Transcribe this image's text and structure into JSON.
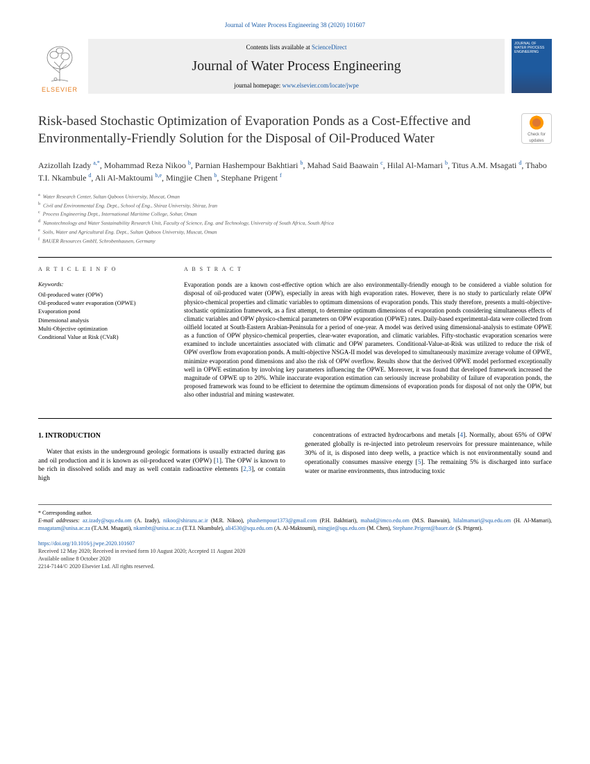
{
  "citation": "Journal of Water Process Engineering 38 (2020) 101607",
  "header": {
    "elsevier": "ELSEVIER",
    "contents_prefix": "Contents lists available at ",
    "contents_link": "ScienceDirect",
    "journal_title": "Journal of Water Process Engineering",
    "homepage_prefix": "journal homepage: ",
    "homepage_link": "www.elsevier.com/locate/jwpe",
    "cover_text1": "Journal of",
    "cover_text2": "Water Process Engineering"
  },
  "check_updates": "Check for updates",
  "title": "Risk-based Stochastic Optimization of Evaporation Ponds as a Cost-Effective and Environmentally-Friendly Solution for the Disposal of Oil-Produced Water",
  "authors_html": "Azizollah Izady <sup>a,*</sup>, Mohammad Reza Nikoo <sup>b</sup>, Parnian Hashempour Bakhtiari <sup>b</sup>, Mahad Said Baawain <sup>c</sup>, Hilal Al-Mamari <sup>b</sup>, Titus A.M. Msagati <sup>d</sup>, Thabo T.I. Nkambule <sup>d</sup>, Ali Al-Maktoumi <sup>b,e</sup>, Mingjie Chen <sup>b</sup>, Stephane Prigent <sup>f</sup>",
  "affiliations": [
    "a|Water Research Center, Sultan Qaboos University, Muscat, Oman",
    "b|Civil and Environmental Eng. Dept., School of Eng., Shiraz University, Shiraz, Iran",
    "c|Process Engineering Dept., International Maritime College, Sohar, Oman",
    "d|Nanotechnology and Water Sustainability Research Unit, Faculty of Science, Eng. and Technology, University of South Africa, South Africa",
    "e|Soils, Water and Agricultural Eng. Dept., Sultan Qaboos University, Muscat, Oman",
    "f|BAUER Resources GmbH, Schrobenhausen, Germany"
  ],
  "article_info_heading": "A R T I C L E  I N F O",
  "keywords_label": "Keywords:",
  "keywords": [
    "Oil-produced water (OPW)",
    "Oil-produced water evaporation (OPWE)",
    "Evaporation pond",
    "Dimensional analysis",
    "Multi-Objective optimization",
    "Conditional Value at Risk (CVaR)"
  ],
  "abstract_heading": "A B S T R A C T",
  "abstract": "Evaporation ponds are a known cost-effective option which are also environmentally-friendly enough to be considered a viable solution for disposal of oil-produced water (OPW), especially in areas with high evaporation rates. However, there is no study to particularly relate OPW physico-chemical properties and climatic variables to optimum dimensions of evaporation ponds. This study therefore, presents a multi-objective-stochastic optimization framework, as a first attempt, to determine optimum dimensions of evaporation ponds considering simultaneous effects of climatic variables and OPW physico-chemical parameters on OPW evaporation (OPWE) rates. Daily-based experimental-data were collected from oilfield located at South-Eastern Arabian-Peninsula for a period of one-year. A model was derived using dimensional-analysis to estimate OPWE as a function of OPW physico-chemical properties, clear-water evaporation, and climatic variables. Fifty-stochastic evaporation scenarios were examined to include uncertainties associated with climatic and OPW parameters. Conditional-Value-at-Risk was utilized to reduce the risk of OPW overflow from evaporation ponds. A multi-objective NSGA-II model was developed to simultaneously maximize average volume of OPWE, minimize evaporation pond dimensions and also the risk of OPW overflow. Results show that the derived OPWE model performed exceptionally well in OPWE estimation by involving key parameters influencing the OPWE. Moreover, it was found that developed framework increased the magnitude of OPWE up to 20%. While inaccurate evaporation estimation can seriously increase probability of failure of evaporation ponds, the proposed framework was found to be efficient to determine the optimum dimensions of evaporation ponds for disposal of not only the OPW, but also other industrial and mining wastewater.",
  "section1_heading": "1. INTRODUCTION",
  "col1_para": "Water that exists in the underground geologic formations is usually extracted during gas and oil production and it is known as oil-produced water (OPW) [1]. The OPW is known to be rich in dissolved solids and may as well contain radioactive elements [2,3], or contain high",
  "col2_para": "concentrations of extracted hydrocarbons and metals [4]. Normally, about 65% of OPW generated globally is re-injected into petroleum reservoirs for pressure maintenance, while 30% of it, is disposed into deep wells, a practice which is not environmentally sound and operationally consumes massive energy [5]. The remaining 5% is discharged into surface water or marine environments, thus introducing toxic",
  "footer": {
    "corr": "* Corresponding author.",
    "email_label": "E-mail addresses:",
    "emails": [
      {
        "addr": "az.izady@squ.edu.om",
        "name": "(A. Izady)"
      },
      {
        "addr": "nikoo@shirazu.ac.ir",
        "name": "(M.R. Nikoo)"
      },
      {
        "addr": "phashempour1373@gmail.com",
        "name": "(P.H. Bakhtiari)"
      },
      {
        "addr": "mahad@imco.edu.om",
        "name": "(M.S. Baawain)"
      },
      {
        "addr": "hilalmamari@squ.edu.om",
        "name": "(H. Al-Mamari)"
      },
      {
        "addr": "msagatam@unisa.ac.za",
        "name": "(T.A.M. Msagati)"
      },
      {
        "addr": "nkambtt@unisa.ac.za",
        "name": "(T.T.I. Nkambule)"
      },
      {
        "addr": "ali4530@squ.edu.om",
        "name": "(A. Al-Maktoumi)"
      },
      {
        "addr": "mingjie@squ.edu.om",
        "name": "(M. Chen)"
      },
      {
        "addr": "Stephane.Prigent@bauer.de",
        "name": "(S. Prigent)"
      }
    ],
    "doi": "https://doi.org/10.1016/j.jwpe.2020.101607",
    "dates": "Received 12 May 2020; Received in revised form 10 August 2020; Accepted 11 August 2020",
    "available": "Available online 8 October 2020",
    "copyright": "2214-7144/© 2020 Elsevier Ltd. All rights reserved."
  },
  "colors": {
    "link": "#1a5ca8",
    "elsevier_orange": "#e67e22",
    "banner_bg": "#efefef",
    "cover_bg": "#1e5a9e"
  }
}
